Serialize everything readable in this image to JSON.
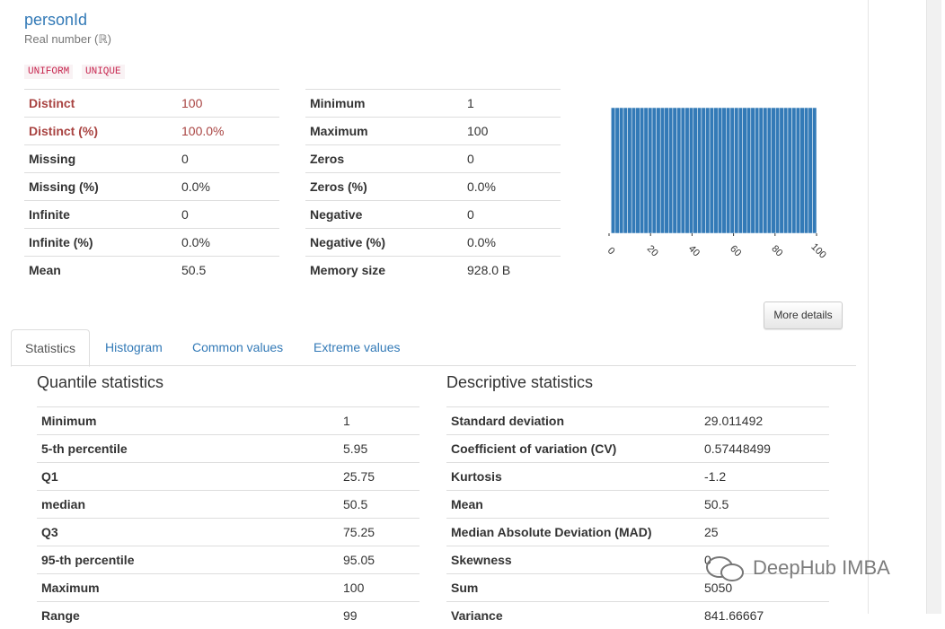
{
  "header": {
    "title": "personId",
    "subtitle": "Real number (ℝ)",
    "tags": [
      "UNIFORM",
      "UNIQUE"
    ]
  },
  "overview": {
    "left_table": [
      [
        "Distinct",
        "100"
      ],
      [
        "Distinct (%)",
        "100.0%"
      ],
      [
        "Missing",
        "0"
      ],
      [
        "Missing (%)",
        "0.0%"
      ],
      [
        "Infinite",
        "0"
      ],
      [
        "Infinite (%)",
        "0.0%"
      ],
      [
        "Mean",
        "50.5"
      ]
    ],
    "right_table": [
      [
        "Minimum",
        "1"
      ],
      [
        "Maximum",
        "100"
      ],
      [
        "Zeros",
        "0"
      ],
      [
        "Zeros (%)",
        "0.0%"
      ],
      [
        "Negative",
        "0"
      ],
      [
        "Negative (%)",
        "0.0%"
      ],
      [
        "Memory size",
        "928.0 B"
      ]
    ],
    "button": "More details"
  },
  "chart_data": {
    "type": "histogram",
    "bins": [
      1,
      2.98,
      4.96,
      6.94,
      8.92,
      10.9,
      12.88,
      14.86,
      16.84,
      18.82,
      20.8,
      22.78,
      24.76,
      26.74,
      28.72,
      30.7,
      32.68,
      34.66,
      36.64,
      38.62,
      40.6,
      42.58,
      44.56,
      46.54,
      48.52,
      50.5,
      52.48,
      54.46,
      56.44,
      58.42,
      60.4,
      62.38,
      64.36,
      66.34,
      68.32,
      70.3,
      72.28,
      74.26,
      76.24,
      78.22,
      80.2,
      82.18,
      84.16,
      86.14,
      88.12,
      90.1,
      92.08,
      94.06,
      96.04,
      98.02,
      100
    ],
    "counts": [
      2,
      2,
      2,
      2,
      2,
      2,
      2,
      2,
      2,
      2,
      2,
      2,
      2,
      2,
      2,
      2,
      2,
      2,
      2,
      2,
      2,
      2,
      2,
      2,
      2,
      2,
      2,
      2,
      2,
      2,
      2,
      2,
      2,
      2,
      2,
      2,
      2,
      2,
      2,
      2,
      2,
      2,
      2,
      2,
      2,
      2,
      2,
      2,
      2,
      2
    ],
    "color": "#337ab7",
    "xlim": [
      0,
      100
    ],
    "xticks": [
      0,
      20,
      40,
      60,
      80,
      100
    ],
    "ylim": [
      0,
      2
    ]
  },
  "tabs": [
    "Statistics",
    "Histogram",
    "Common values",
    "Extreme values"
  ],
  "quantile": {
    "title": "Quantile statistics",
    "rows": [
      [
        "Minimum",
        "1"
      ],
      [
        "5-th percentile",
        "5.95"
      ],
      [
        "Q1",
        "25.75"
      ],
      [
        "median",
        "50.5"
      ],
      [
        "Q3",
        "75.25"
      ],
      [
        "95-th percentile",
        "95.05"
      ],
      [
        "Maximum",
        "100"
      ],
      [
        "Range",
        "99"
      ]
    ]
  },
  "descriptive": {
    "title": "Descriptive statistics",
    "rows": [
      [
        "Standard deviation",
        "29.011492"
      ],
      [
        "Coefficient of variation (CV)",
        "0.57448499"
      ],
      [
        "Kurtosis",
        "-1.2"
      ],
      [
        "Mean",
        "50.5"
      ],
      [
        "Median Absolute Deviation (MAD)",
        "25"
      ],
      [
        "Skewness",
        "0"
      ],
      [
        "Sum",
        "5050"
      ],
      [
        "Variance",
        "841.66667"
      ]
    ]
  },
  "watermark": "DeepHub IMBA"
}
